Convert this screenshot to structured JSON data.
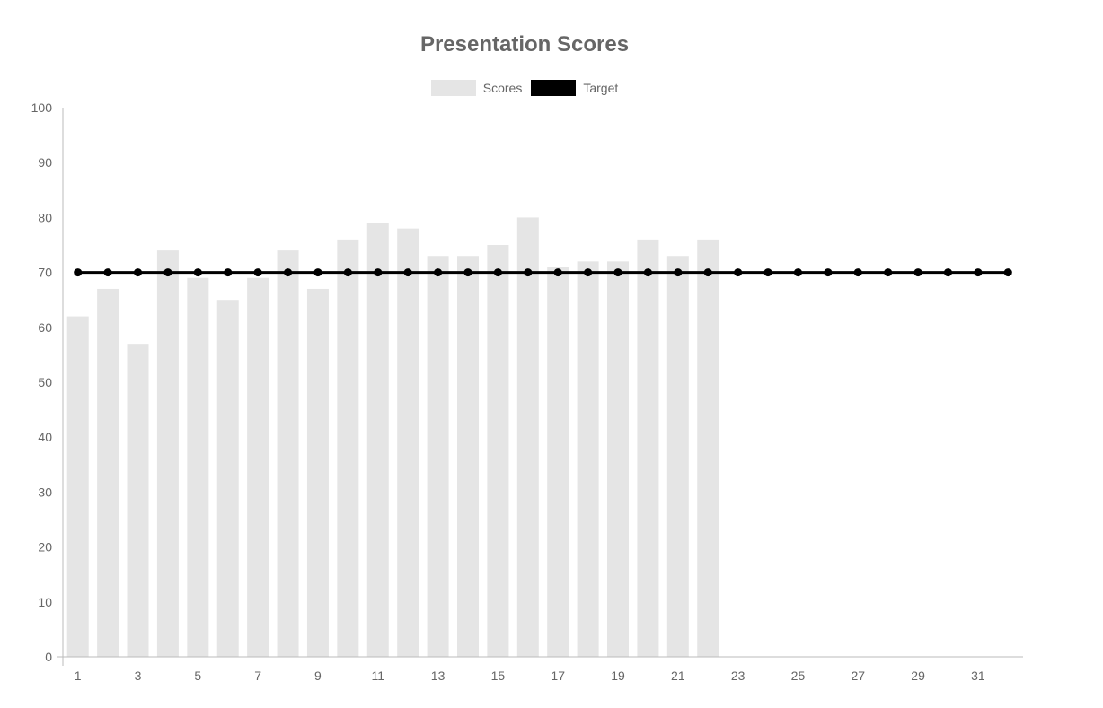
{
  "chart_data": {
    "type": "bar",
    "title": "Presentation Scores",
    "legend_placement": "top-center",
    "grid": false,
    "xlabel": "",
    "ylabel": "",
    "ylim": [
      0,
      100
    ],
    "yticks": [
      0,
      10,
      20,
      30,
      40,
      50,
      60,
      70,
      80,
      90,
      100
    ],
    "categories": [
      1,
      2,
      3,
      4,
      5,
      6,
      7,
      8,
      9,
      10,
      11,
      12,
      13,
      14,
      15,
      16,
      17,
      18,
      19,
      20,
      21,
      22,
      23,
      24,
      25,
      26,
      27,
      28,
      29,
      30,
      31,
      32
    ],
    "xtick_labels": [
      "1",
      "3",
      "5",
      "7",
      "9",
      "11",
      "13",
      "15",
      "17",
      "19",
      "21",
      "23",
      "25",
      "27",
      "29",
      "31"
    ],
    "series": [
      {
        "name": "Scores",
        "type": "bar",
        "color": "#e5e5e5",
        "values": [
          62,
          67,
          57,
          74,
          69,
          65,
          69,
          74,
          67,
          76,
          79,
          78,
          73,
          73,
          75,
          80,
          71,
          72,
          72,
          76,
          73,
          76,
          null,
          null,
          null,
          null,
          null,
          null,
          null,
          null,
          null,
          null
        ]
      },
      {
        "name": "Target",
        "type": "line",
        "color": "#000000",
        "values": [
          70,
          70,
          70,
          70,
          70,
          70,
          70,
          70,
          70,
          70,
          70,
          70,
          70,
          70,
          70,
          70,
          70,
          70,
          70,
          70,
          70,
          70,
          70,
          70,
          70,
          70,
          70,
          70,
          70,
          70,
          70,
          70
        ]
      }
    ]
  }
}
